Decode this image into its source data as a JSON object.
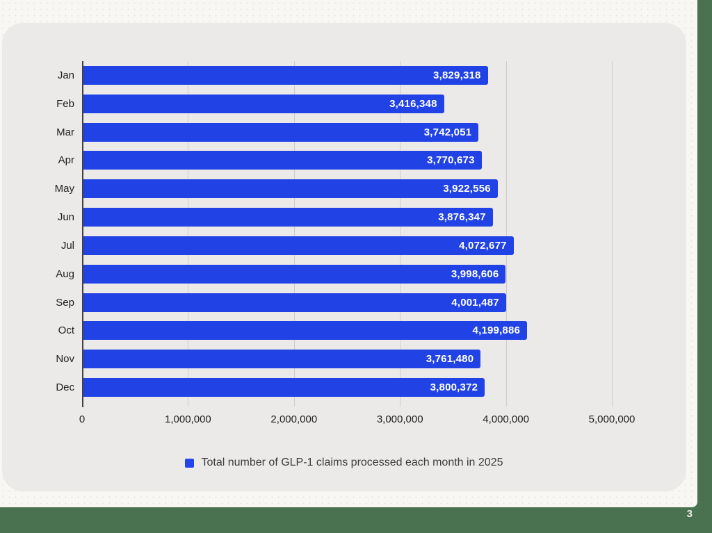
{
  "page": {
    "number": "3"
  },
  "colors": {
    "background": "#4A7150",
    "slide": "#F8F7F4",
    "card": "#ECEAE8",
    "bar": "#2143E6",
    "grid": "#CFCDCA",
    "axis": "#424242"
  },
  "chart_data": {
    "type": "bar",
    "orientation": "horizontal",
    "title": "",
    "xlabel": "",
    "ylabel": "",
    "categories": [
      "Jan",
      "Feb",
      "Mar",
      "Apr",
      "May",
      "Jun",
      "Jul",
      "Aug",
      "Sep",
      "Oct",
      "Nov",
      "Dec"
    ],
    "values": [
      3829318,
      3416348,
      3742051,
      3770673,
      3922556,
      3876347,
      4072677,
      3998606,
      4001487,
      4199886,
      3761480,
      3800372
    ],
    "value_labels": [
      "3,829,318",
      "3,416,348",
      "3,742,051",
      "3,770,673",
      "3,922,556",
      "3,876,347",
      "4,072,677",
      "3,998,606",
      "4,001,487",
      "4,199,886",
      "3,761,480",
      "3,800,372"
    ],
    "xlim": [
      0,
      5000000
    ],
    "x_ticks": [
      "0",
      "1,000,000",
      "2,000,000",
      "3,000,000",
      "4,000,000",
      "5,000,000"
    ],
    "grid": true,
    "value_labels_position": "inside-end",
    "legend": "Total number of GLP-1 claims processed each month in 2025",
    "legend_position": "bottom"
  }
}
